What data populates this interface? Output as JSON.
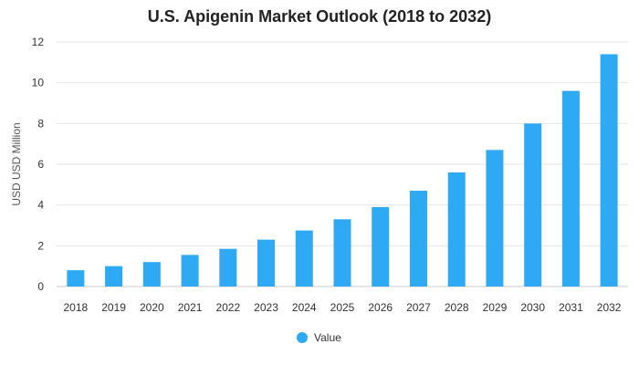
{
  "chart_data": {
    "type": "bar",
    "title": "U.S. Apigenin Market Outlook (2018 to 2032)",
    "xlabel": "",
    "ylabel": "USD USD Million",
    "ylim": [
      0,
      12
    ],
    "yticks": [
      0,
      2,
      4,
      6,
      8,
      10,
      12
    ],
    "grid": true,
    "legend_position": "bottom",
    "categories": [
      "2018",
      "2019",
      "2020",
      "2021",
      "2022",
      "2023",
      "2024",
      "2025",
      "2026",
      "2027",
      "2028",
      "2029",
      "2030",
      "2031",
      "2032"
    ],
    "series": [
      {
        "name": "Value",
        "color": "#2eaaf5",
        "values": [
          0.8,
          1.0,
          1.2,
          1.55,
          1.85,
          2.3,
          2.75,
          3.3,
          3.9,
          4.7,
          5.6,
          6.7,
          8.0,
          9.6,
          11.4
        ]
      }
    ]
  },
  "colors": {
    "bar": "#2eaaf5",
    "grid": "#e6e6e6",
    "axis": "#cccccc"
  }
}
